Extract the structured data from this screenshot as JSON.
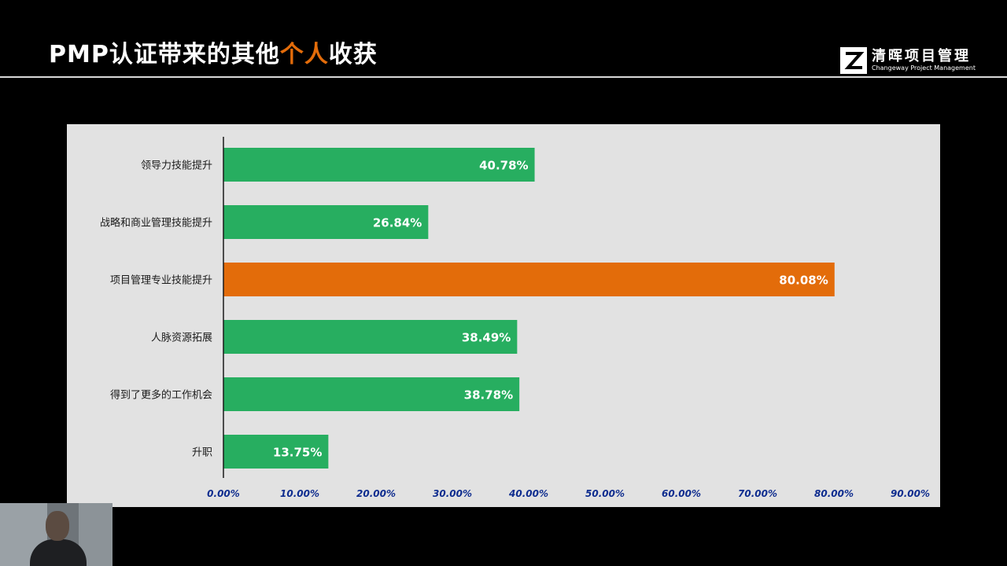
{
  "slide": {
    "title_prefix": "PMP认证带来的其他",
    "title_highlight": "个人",
    "title_suffix": "收获",
    "highlight_color": "#e36c0a"
  },
  "logo": {
    "name_cn": "清晖项目管理",
    "name_en": "Changeway Project Management"
  },
  "chart_data": {
    "type": "bar",
    "orientation": "horizontal",
    "categories": [
      "领导力技能提升",
      "战略和商业管理技能提升",
      "项目管理专业技能提升",
      "人脉资源拓展",
      "得到了更多的工作机会",
      "升职"
    ],
    "values": [
      40.78,
      26.84,
      80.08,
      38.49,
      38.78,
      13.75
    ],
    "data_labels": [
      "40.78%",
      "26.84%",
      "80.08%",
      "38.49%",
      "38.78%",
      "13.75%"
    ],
    "xlim": [
      0,
      90
    ],
    "x_ticks": [
      "0.00%",
      "10.00%",
      "20.00%",
      "30.00%",
      "40.00%",
      "50.00%",
      "60.00%",
      "70.00%",
      "80.00%",
      "90.00%"
    ],
    "bar_color": "#27ae60",
    "highlight_index": 2,
    "highlight_color": "#e36c0a",
    "axis_label_color": "#0f2d8f",
    "grid": false
  }
}
